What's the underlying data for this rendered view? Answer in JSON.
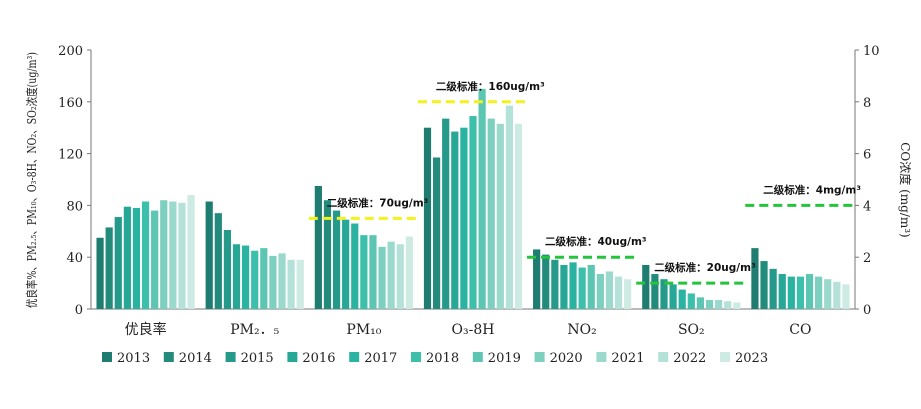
{
  "chart_data": {
    "type": "bar",
    "categories": [
      "优良率",
      "PM₂．₅",
      "PM₁₀",
      "O₃-8H",
      "NO₂",
      "SO₂",
      "CO"
    ],
    "left_axis": {
      "title": "优良率%、PM₂.₅、PM₁₀、O₃-8H、NO₂、SO₂浓度(ug/m³)",
      "ylim": [
        0,
        200
      ],
      "ticks": [
        "0",
        "40",
        "80",
        "120",
        "160",
        "200"
      ]
    },
    "right_axis": {
      "title": "CO浓度 (mg/m³)",
      "ylim": [
        0,
        10
      ],
      "ticks": [
        "0",
        "2",
        "4",
        "6",
        "8",
        "10"
      ]
    },
    "series": [
      {
        "name": "2013",
        "color": "#1e7d70",
        "values": [
          55,
          83,
          95,
          140,
          46,
          34,
          2.35
        ]
      },
      {
        "name": "2014",
        "color": "#228b7c",
        "values": [
          63,
          74,
          84,
          117,
          42,
          27,
          1.85
        ]
      },
      {
        "name": "2015",
        "color": "#259a8a",
        "values": [
          71,
          61,
          76,
          147,
          38,
          23,
          1.55
        ]
      },
      {
        "name": "2016",
        "color": "#27a897",
        "values": [
          79,
          50,
          69,
          137,
          34,
          19,
          1.35
        ]
      },
      {
        "name": "2017",
        "color": "#2ab3a1",
        "values": [
          78,
          49,
          66,
          140,
          36,
          15,
          1.25
        ]
      },
      {
        "name": "2018",
        "color": "#3cbfab",
        "values": [
          83,
          45,
          57,
          149,
          32,
          12,
          1.25
        ]
      },
      {
        "name": "2019",
        "color": "#5cc6b3",
        "values": [
          76,
          47,
          57,
          170,
          34,
          9,
          1.35
        ]
      },
      {
        "name": "2020",
        "color": "#7dcfbf",
        "values": [
          84,
          41,
          48,
          147,
          27,
          7,
          1.25
        ]
      },
      {
        "name": "2021",
        "color": "#9ad9cc",
        "values": [
          83,
          43,
          52,
          143,
          29,
          7,
          1.15
        ]
      },
      {
        "name": "2022",
        "color": "#b4e2d8",
        "values": [
          82,
          38,
          50,
          157,
          25,
          6,
          1.05
        ]
      },
      {
        "name": "2023",
        "color": "#cdebe3",
        "values": [
          88,
          38,
          56,
          143,
          23,
          5,
          0.95
        ]
      }
    ],
    "standards": [
      {
        "label": "二级标准：70ug/m³",
        "category": "PM₁₀",
        "value": 70,
        "axis": "left",
        "color": "#f2f21c"
      },
      {
        "label": "二级标准：160ug/m³",
        "category": "O₃-8H",
        "value": 160,
        "axis": "left",
        "color": "#f2f21c"
      },
      {
        "label": "二级标准：40ug/m³",
        "category": "NO₂",
        "value": 40,
        "axis": "left",
        "color": "#24c43c"
      },
      {
        "label": "二级标准：20ug/m³",
        "category": "SO₂",
        "value": 20,
        "axis": "left",
        "color": "#24c43c"
      },
      {
        "label": "二级标准：4mg/m³",
        "category": "CO",
        "value": 4,
        "axis": "right",
        "color": "#24c43c"
      }
    ],
    "legend_position": "bottom",
    "grid": false
  }
}
